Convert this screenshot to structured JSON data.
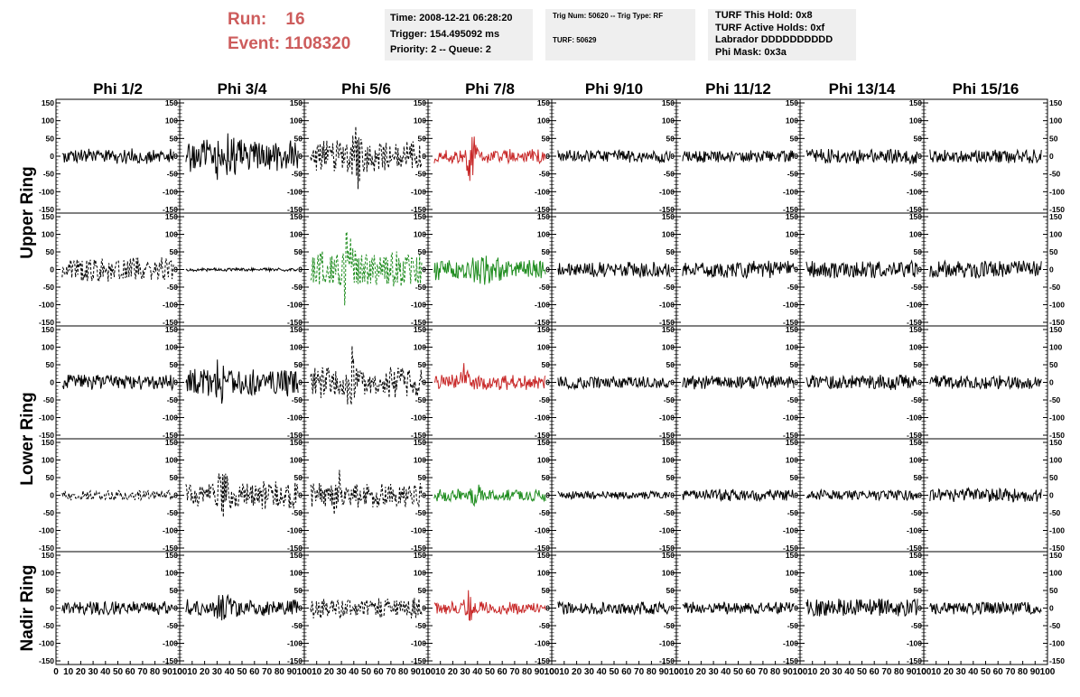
{
  "header": {
    "run_label": "Run:",
    "run_value": "16",
    "event_label": "Event:",
    "event_value": "1108320",
    "time": "Time: 2008-12-21 06:28:20",
    "trigger": "Trigger: 154.495092 ms",
    "priority": "Priority: 2 -- Queue: 2",
    "trig_line": "Trig Num: 50620 -- Trig Type: RF",
    "turf_line": "TURF: 50629",
    "turf_hold": "TURF This Hold: 0x8",
    "turf_active": "TURF Active Holds: 0xf",
    "labrador": "Labrador DDDDDDDDDD",
    "phi_mask": "Phi Mask: 0x3a"
  },
  "colors": {
    "run_text": "#cd5c5c",
    "info_bg": "#efefef",
    "trace_default": "#000000",
    "trace_red": "#c82828",
    "trace_green": "#1e8c1e"
  },
  "chart_data": {
    "type": "line",
    "columns": [
      "Phi 1/2",
      "Phi 3/4",
      "Phi 5/6",
      "Phi 7/8",
      "Phi 9/10",
      "Phi 11/12",
      "Phi 13/14",
      "Phi 15/16"
    ],
    "rows": [
      {
        "label": "Upper Ring",
        "group": "upper-ring"
      },
      {
        "label": "",
        "group": "upper-ring"
      },
      {
        "label": "Lower Ring",
        "group": "lower-ring"
      },
      {
        "label": "",
        "group": "lower-ring"
      },
      {
        "label": "Nadir Ring",
        "group": "nadir-ring"
      }
    ],
    "ylim": [
      -150,
      150
    ],
    "xlim": [
      0,
      100
    ],
    "yticks_major": [
      -150,
      -100,
      -50,
      0,
      50,
      100,
      150
    ],
    "xtick_labels": [
      "0",
      "10",
      "20",
      "30",
      "40",
      "50",
      "60",
      "70",
      "80",
      "90",
      "100"
    ],
    "ytick_labels": [
      "150",
      "100",
      "50",
      "0",
      "-50",
      "-100",
      "-150"
    ],
    "traces": [
      [
        {
          "color": "black",
          "style": "solid",
          "amp": 22,
          "burst_center": 50,
          "burst_width": 100,
          "burst_amp": 0
        },
        {
          "color": "black",
          "style": "solid",
          "amp": 45,
          "burst_center": 35,
          "burst_width": 25,
          "burst_amp": 35
        },
        {
          "color": "black",
          "style": "dashed",
          "amp": 45,
          "burst_center": 42,
          "burst_width": 10,
          "burst_amp": 80
        },
        {
          "color": "red",
          "style": "solid",
          "amp": 20,
          "burst_center": 35,
          "burst_width": 10,
          "burst_amp": 60
        },
        {
          "color": "black",
          "style": "solid",
          "amp": 18,
          "burst_center": 50,
          "burst_width": 100,
          "burst_amp": 0
        },
        {
          "color": "black",
          "style": "solid",
          "amp": 18,
          "burst_center": 50,
          "burst_width": 100,
          "burst_amp": 0
        },
        {
          "color": "black",
          "style": "solid",
          "amp": 22,
          "burst_center": 50,
          "burst_width": 100,
          "burst_amp": 0
        },
        {
          "color": "black",
          "style": "solid",
          "amp": 20,
          "burst_center": 50,
          "burst_width": 100,
          "burst_amp": 0
        }
      ],
      [
        {
          "color": "black",
          "style": "dashed",
          "amp": 35,
          "burst_center": 50,
          "burst_width": 100,
          "burst_amp": 0
        },
        {
          "color": "black",
          "style": "solid",
          "amp": 5,
          "burst_center": 50,
          "burst_width": 100,
          "burst_amp": 0
        },
        {
          "color": "green",
          "style": "dashed",
          "amp": 55,
          "burst_center": 35,
          "burst_width": 10,
          "burst_amp": 90
        },
        {
          "color": "green",
          "style": "solid",
          "amp": 30,
          "burst_center": 45,
          "burst_width": 30,
          "burst_amp": 15
        },
        {
          "color": "black",
          "style": "solid",
          "amp": 22,
          "burst_center": 50,
          "burst_width": 100,
          "burst_amp": 0
        },
        {
          "color": "black",
          "style": "solid",
          "amp": 25,
          "burst_center": 50,
          "burst_width": 100,
          "burst_amp": 0
        },
        {
          "color": "black",
          "style": "solid",
          "amp": 25,
          "burst_center": 50,
          "burst_width": 100,
          "burst_amp": 0
        },
        {
          "color": "black",
          "style": "solid",
          "amp": 25,
          "burst_center": 50,
          "burst_width": 100,
          "burst_amp": 0
        }
      ],
      [
        {
          "color": "black",
          "style": "solid",
          "amp": 22,
          "burst_center": 50,
          "burst_width": 100,
          "burst_amp": 0
        },
        {
          "color": "black",
          "style": "solid",
          "amp": 40,
          "burst_center": 30,
          "burst_width": 20,
          "burst_amp": 30
        },
        {
          "color": "black",
          "style": "dashed",
          "amp": 45,
          "burst_center": 38,
          "burst_width": 10,
          "burst_amp": 60
        },
        {
          "color": "red",
          "style": "solid",
          "amp": 22,
          "burst_center": 30,
          "burst_width": 12,
          "burst_amp": 35
        },
        {
          "color": "black",
          "style": "solid",
          "amp": 18,
          "burst_center": 50,
          "burst_width": 100,
          "burst_amp": 0
        },
        {
          "color": "black",
          "style": "solid",
          "amp": 20,
          "burst_center": 50,
          "burst_width": 100,
          "burst_amp": 0
        },
        {
          "color": "black",
          "style": "solid",
          "amp": 22,
          "burst_center": 50,
          "burst_width": 100,
          "burst_amp": 0
        },
        {
          "color": "black",
          "style": "solid",
          "amp": 20,
          "burst_center": 50,
          "burst_width": 100,
          "burst_amp": 0
        }
      ],
      [
        {
          "color": "black",
          "style": "dashed",
          "amp": 15,
          "burst_center": 50,
          "burst_width": 100,
          "burst_amp": 0
        },
        {
          "color": "black",
          "style": "dashed",
          "amp": 40,
          "burst_center": 35,
          "burst_width": 12,
          "burst_amp": 60
        },
        {
          "color": "black",
          "style": "dashed",
          "amp": 35,
          "burst_center": 28,
          "burst_width": 10,
          "burst_amp": 70
        },
        {
          "color": "green",
          "style": "solid",
          "amp": 18,
          "burst_center": 38,
          "burst_width": 12,
          "burst_amp": 20
        },
        {
          "color": "black",
          "style": "solid",
          "amp": 12,
          "burst_center": 50,
          "burst_width": 100,
          "burst_amp": 0
        },
        {
          "color": "black",
          "style": "solid",
          "amp": 18,
          "burst_center": 50,
          "burst_width": 100,
          "burst_amp": 0
        },
        {
          "color": "black",
          "style": "solid",
          "amp": 15,
          "burst_center": 50,
          "burst_width": 100,
          "burst_amp": 0
        },
        {
          "color": "black",
          "style": "solid",
          "amp": 20,
          "burst_center": 50,
          "burst_width": 100,
          "burst_amp": 0
        }
      ],
      [
        {
          "color": "black",
          "style": "solid",
          "amp": 20,
          "burst_center": 50,
          "burst_width": 100,
          "burst_amp": 0
        },
        {
          "color": "black",
          "style": "solid",
          "amp": 25,
          "burst_center": 35,
          "burst_width": 12,
          "burst_amp": 25
        },
        {
          "color": "black",
          "style": "dashed",
          "amp": 30,
          "burst_center": 50,
          "burst_width": 100,
          "burst_amp": 0
        },
        {
          "color": "red",
          "style": "solid",
          "amp": 18,
          "burst_center": 32,
          "burst_width": 8,
          "burst_amp": 50
        },
        {
          "color": "black",
          "style": "solid",
          "amp": 18,
          "burst_center": 50,
          "burst_width": 100,
          "burst_amp": 0
        },
        {
          "color": "black",
          "style": "solid",
          "amp": 18,
          "burst_center": 50,
          "burst_width": 100,
          "burst_amp": 0
        },
        {
          "color": "black",
          "style": "solid",
          "amp": 28,
          "burst_center": 50,
          "burst_width": 100,
          "burst_amp": 0
        },
        {
          "color": "black",
          "style": "solid",
          "amp": 18,
          "burst_center": 50,
          "burst_width": 100,
          "burst_amp": 0
        }
      ]
    ]
  }
}
